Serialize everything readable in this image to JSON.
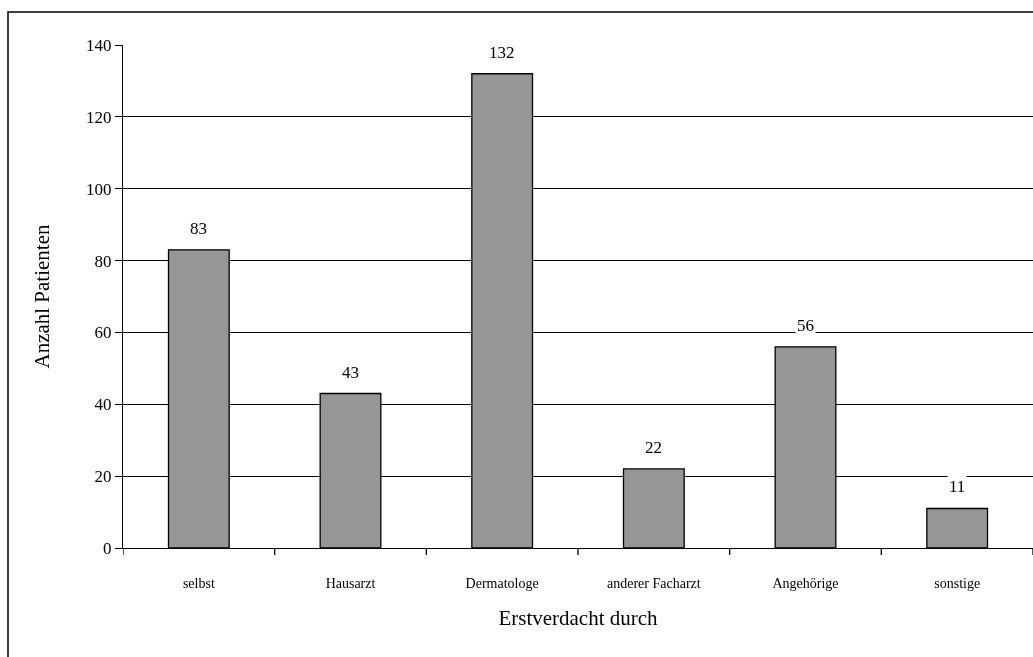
{
  "chart_data": {
    "type": "bar",
    "xlabel": "Erstverdacht durch",
    "ylabel": "Anzahl Patienten",
    "categories": [
      "selbst",
      "Hausarzt",
      "Dermatologe",
      "anderer Facharzt",
      "Angehörige",
      "sonstige"
    ],
    "values": [
      83,
      43,
      132,
      22,
      56,
      11
    ],
    "color": "#969696",
    "ylim": [
      0,
      140
    ],
    "yticks": [
      0,
      20,
      40,
      60,
      80,
      100,
      120,
      140
    ],
    "grid": "y",
    "data_labels": true
  }
}
